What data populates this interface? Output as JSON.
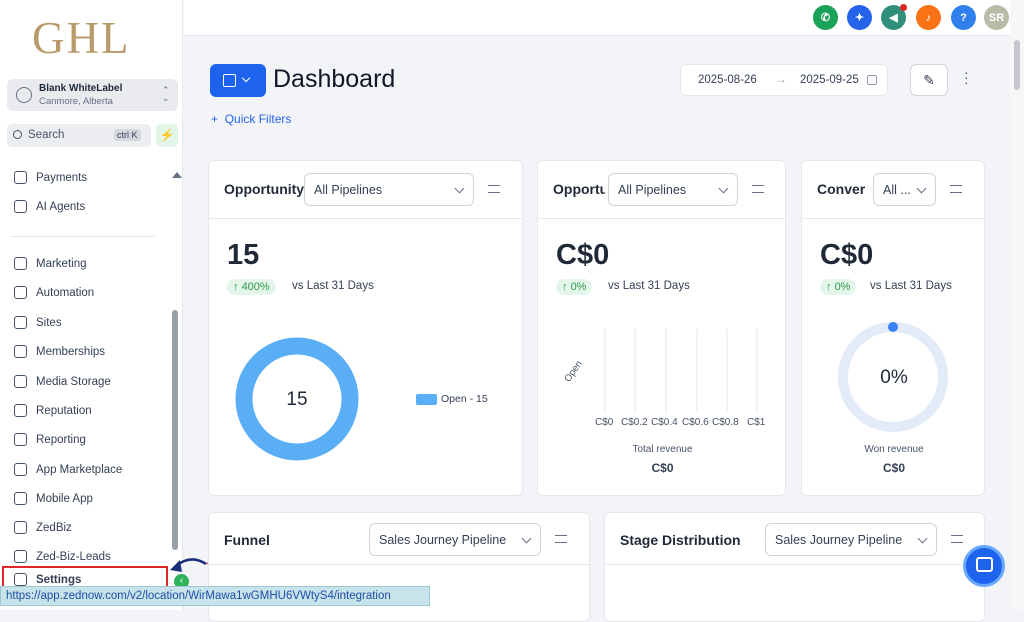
{
  "logo": "GHL",
  "account": {
    "name": "Blank WhiteLabel",
    "location": "Canmore, Alberta"
  },
  "search": {
    "placeholder": "Search",
    "shortcut": "ctrl K"
  },
  "nav": [
    "Payments",
    "AI Agents",
    "Marketing",
    "Automation",
    "Sites",
    "Memberships",
    "Media Storage",
    "Reputation",
    "Reporting",
    "App Marketplace",
    "Mobile App",
    "ZedBiz",
    "Zed-Biz-Leads",
    "Settings"
  ],
  "topbar": {
    "help": "?",
    "avatar": "SR"
  },
  "header": {
    "title": "Dashboard",
    "date_start": "2025-08-26",
    "date_end": "2025-09-25",
    "quick_filters": "Quick Filters"
  },
  "cards": [
    {
      "title": "Opportunity",
      "filter": "All Pipelines",
      "value": "15",
      "change": "400%",
      "compare": "vs Last 31 Days",
      "center": "15",
      "legend": "Open - 15"
    },
    {
      "title": "Opportu",
      "filter": "All Pipelines",
      "value": "C$0",
      "change": "0%",
      "compare": "vs Last 31 Days",
      "bar_label": "Open",
      "x_ticks": [
        "C$0",
        "C$0.2",
        "C$0.4",
        "C$0.6",
        "C$0.8",
        "C$1"
      ],
      "x_title": "Total revenue",
      "total": "C$0"
    },
    {
      "title": "Conver",
      "filter": "All ...",
      "value": "C$0",
      "change": "0%",
      "compare": "vs Last 31 Days",
      "center": "0%",
      "caption": "Won revenue",
      "total": "C$0"
    }
  ],
  "bottom_cards": [
    {
      "title": "Funnel",
      "filter": "Sales Journey Pipeline"
    },
    {
      "title": "Stage Distribution",
      "filter": "Sales Journey Pipeline"
    }
  ],
  "annotation": "1",
  "status_url": "https://app.zednow.com/v2/location/WirMawa1wGMHU6VWtyS4/integration"
}
